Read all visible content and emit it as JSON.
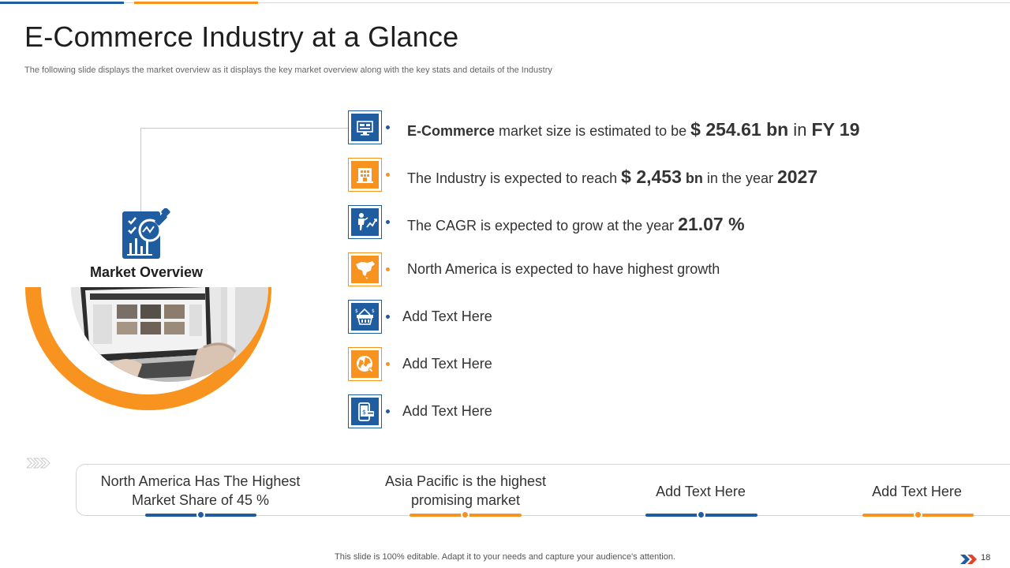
{
  "slide": {
    "title": "E-Commerce Industry at a Glance",
    "subtitle": "The following slide displays the market overview as it displays the key market overview along with the key stats and details of the Industry",
    "footer": "This slide is 100% editable. Adapt it to your needs and capture your audience's attention.",
    "page_number": "18"
  },
  "overview": {
    "label": "Market Overview",
    "icon": "market-analysis-icon"
  },
  "items": [
    {
      "icon": "monitor-icon",
      "color": "#1f5ca0",
      "bold_lead": "E-Commerce",
      "text_a": " market size is estimated to be ",
      "value": "$ 254.61 bn",
      "text_b": " in ",
      "value2": "FY 19"
    },
    {
      "icon": "building-icon",
      "color": "#f7931e",
      "text_a": "The Industry is expected to reach ",
      "value": "$ 2,453",
      "text_b": " bn",
      "text_c": " in the year ",
      "value2": "2027"
    },
    {
      "icon": "growth-person-icon",
      "color": "#1f5ca0",
      "text_a": "The CAGR is expected to grow at the year ",
      "value": "21.07 %"
    },
    {
      "icon": "north-america-map-icon",
      "color": "#f7931e",
      "text_a": "North America is expected to have highest growth"
    },
    {
      "icon": "shopping-basket-icon",
      "color": "#1f5ca0",
      "text_a": "Add Text Here"
    },
    {
      "icon": "globe-icon",
      "color": "#f7931e",
      "text_a": "Add Text Here"
    },
    {
      "icon": "mobile-payment-icon",
      "color": "#1f5ca0",
      "text_a": "Add Text Here"
    }
  ],
  "bottom_stats": [
    {
      "line1": "North America Has The Highest",
      "line2": "Market Share of 45 %",
      "color": "#1f5ca0"
    },
    {
      "line1": "Asia Pacific is the highest",
      "line2": "promising market",
      "color": "#f7931e"
    },
    {
      "line1": "Add Text Here",
      "color": "#1f5ca0"
    },
    {
      "line1": "Add Text Here",
      "color": "#f7931e"
    }
  ],
  "colors": {
    "blue": "#1f5ca0",
    "orange": "#f7931e"
  }
}
